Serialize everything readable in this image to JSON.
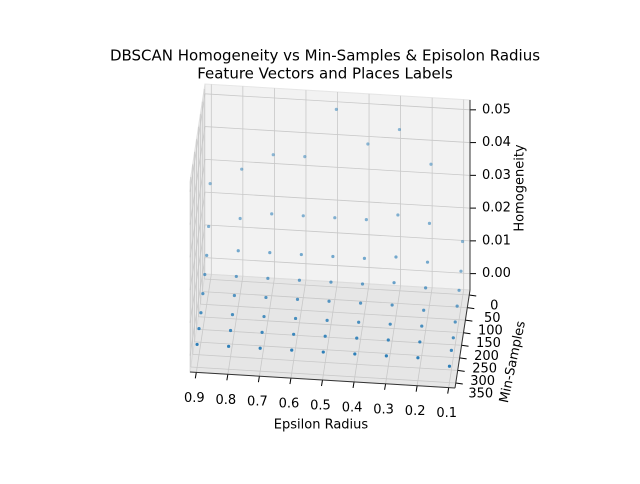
{
  "chart_data": {
    "type": "scatter3d",
    "title": "DBSCAN Homogeneity vs Min-Samples & Episolon Radius",
    "subtitle": "Feature Vectors and Places Labels",
    "xlabel": "Epsilon Radius",
    "ylabel": "Min-Samples",
    "zlabel": "Homogeneity",
    "color": "#1f77b4",
    "grid": true,
    "xlim": [
      0.92,
      0.08
    ],
    "ylim": [
      -20,
      370
    ],
    "zlim": [
      -0.005,
      0.053
    ],
    "xticks": [
      0.9,
      0.8,
      0.7,
      0.6,
      0.5,
      0.4,
      0.3,
      0.2,
      0.1
    ],
    "yticks": [
      0,
      50,
      100,
      150,
      200,
      250,
      300,
      350
    ],
    "zticks": [
      {
        "value": 0,
        "label": "0.00"
      },
      0.01,
      0.02,
      0.03,
      0.04,
      0.05
    ],
    "x": [
      0.1,
      0.1,
      0.1,
      0.1,
      0.1,
      0.1,
      0.1,
      0.1,
      0.2,
      0.2,
      0.2,
      0.2,
      0.2,
      0.2,
      0.2,
      0.2,
      0.3,
      0.3,
      0.3,
      0.3,
      0.3,
      0.3,
      0.3,
      0.3,
      0.4,
      0.4,
      0.4,
      0.4,
      0.4,
      0.4,
      0.4,
      0.4,
      0.5,
      0.5,
      0.5,
      0.5,
      0.5,
      0.5,
      0.5,
      0.5,
      0.6,
      0.6,
      0.6,
      0.6,
      0.6,
      0.6,
      0.6,
      0.6,
      0.7,
      0.7,
      0.7,
      0.7,
      0.7,
      0.7,
      0.7,
      0.7,
      0.8,
      0.8,
      0.8,
      0.8,
      0.8,
      0.8,
      0.8,
      0.8,
      0.9,
      0.9,
      0.9,
      0.9,
      0.9,
      0.9,
      0.9,
      0.9
    ],
    "y": [
      10,
      50,
      100,
      150,
      200,
      250,
      300,
      350,
      10,
      50,
      100,
      150,
      200,
      250,
      300,
      350,
      10,
      50,
      100,
      150,
      200,
      250,
      300,
      350,
      10,
      50,
      100,
      150,
      200,
      250,
      300,
      350,
      10,
      50,
      100,
      150,
      200,
      250,
      300,
      350,
      10,
      50,
      100,
      150,
      200,
      250,
      300,
      350,
      10,
      50,
      100,
      150,
      200,
      250,
      300,
      350,
      10,
      50,
      100,
      150,
      200,
      250,
      300,
      350,
      10,
      50,
      100,
      150,
      200,
      250,
      300,
      350
    ],
    "z": [
      0.012,
      0.006,
      0.004,
      0.003,
      0.002,
      0.001,
      0.001,
      0.0,
      0.035,
      0.02,
      0.012,
      0.008,
      0.005,
      0.004,
      0.003,
      0.002,
      0.045,
      0.022,
      0.013,
      0.009,
      0.006,
      0.004,
      0.003,
      0.002,
      0.04,
      0.02,
      0.012,
      0.008,
      0.006,
      0.004,
      0.003,
      0.002,
      0.05,
      0.02,
      0.012,
      0.008,
      0.006,
      0.004,
      0.003,
      0.002,
      0.035,
      0.02,
      0.012,
      0.008,
      0.006,
      0.004,
      0.003,
      0.002,
      0.035,
      0.02,
      0.012,
      0.008,
      0.006,
      0.004,
      0.003,
      0.002,
      0.03,
      0.018,
      0.012,
      0.008,
      0.006,
      0.004,
      0.003,
      0.002,
      0.025,
      0.015,
      0.01,
      0.008,
      0.006,
      0.004,
      0.003,
      0.002
    ]
  }
}
